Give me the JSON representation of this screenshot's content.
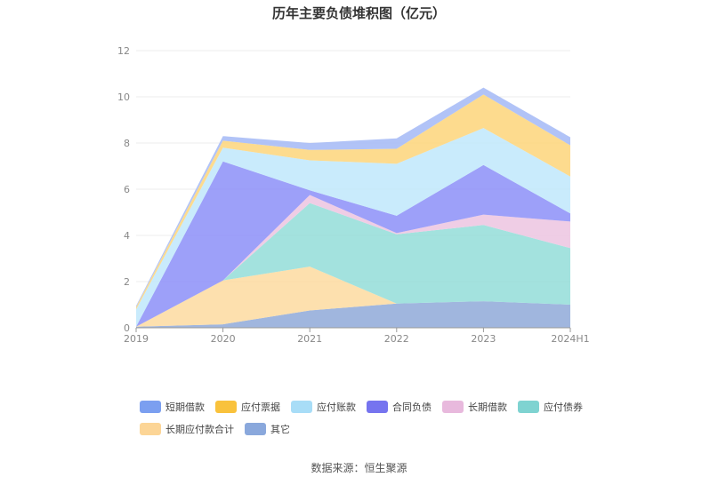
{
  "title": "历年主要负债堆积图（亿元）",
  "source": "数据来源：恒生聚源",
  "chart_data": {
    "type": "area",
    "stacked": true,
    "categories": [
      "2019",
      "2020",
      "2021",
      "2022",
      "2023",
      "2024H1"
    ],
    "ylim": [
      0,
      12
    ],
    "yticks": [
      "0",
      "2",
      "4",
      "6",
      "8",
      "10",
      "12"
    ],
    "grid": true,
    "legend_position": "bottom",
    "series": [
      {
        "name": "其它",
        "color": "#8fa9d8",
        "values": [
          0.05,
          0.15,
          0.75,
          1.05,
          1.15,
          1.0
        ]
      },
      {
        "name": "长期应付款合计",
        "color": "#fddba0",
        "values": [
          0.0,
          1.9,
          1.9,
          0.0,
          0.0,
          0.0
        ]
      },
      {
        "name": "应付债券",
        "color": "#93ddd8",
        "values": [
          0.0,
          0.0,
          2.75,
          3.0,
          3.3,
          2.45
        ]
      },
      {
        "name": "长期借款",
        "color": "#ecc4e0",
        "values": [
          0.0,
          0.0,
          0.35,
          0.05,
          0.45,
          1.15
        ]
      },
      {
        "name": "合同负债",
        "color": "#8c8ff8",
        "values": [
          0.0,
          5.15,
          0.2,
          0.75,
          2.15,
          0.35
        ]
      },
      {
        "name": "应付账款",
        "color": "#bfe8fb",
        "values": [
          0.75,
          0.6,
          1.3,
          2.25,
          1.6,
          1.6
        ]
      },
      {
        "name": "应付票据",
        "color": "#fdd57a",
        "values": [
          0.1,
          0.3,
          0.45,
          0.65,
          1.45,
          1.35
        ]
      },
      {
        "name": "短期借款",
        "color": "#a3b8f6",
        "values": [
          0.05,
          0.2,
          0.3,
          0.45,
          0.3,
          0.35
        ]
      }
    ]
  },
  "legend": [
    {
      "label": "短期借款",
      "color": "#7b9ff0"
    },
    {
      "label": "应付票据",
      "color": "#f9c23c"
    },
    {
      "label": "应付账款",
      "color": "#a8ddf7"
    },
    {
      "label": "合同负债",
      "color": "#7674ef"
    },
    {
      "label": "长期借款",
      "color": "#e8b9dd"
    },
    {
      "label": "应付债券",
      "color": "#7fd3d1"
    },
    {
      "label": "长期应付款合计",
      "color": "#fcd596"
    },
    {
      "label": "其它",
      "color": "#8aa8dc"
    }
  ]
}
